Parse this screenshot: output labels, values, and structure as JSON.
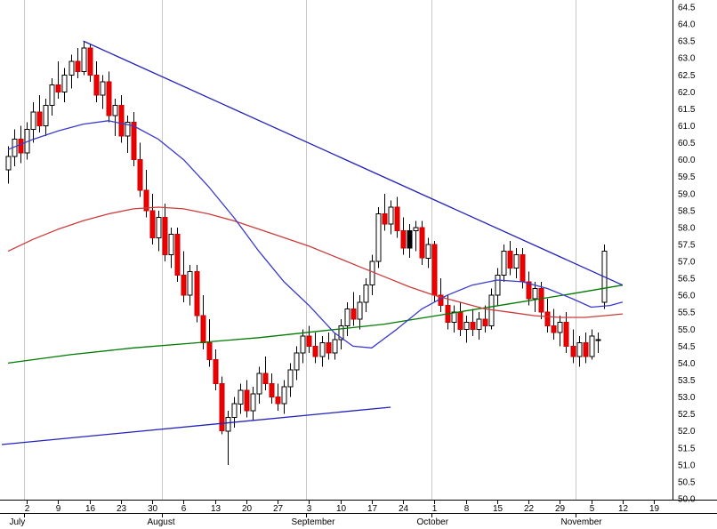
{
  "chart_data": {
    "type": "candlestick",
    "title": "",
    "y_axis": {
      "min": 50.0,
      "max": 64.5,
      "step": 0.5,
      "labels": [
        "64.5",
        "64.0",
        "63.5",
        "63.0",
        "62.5",
        "62.0",
        "61.5",
        "61.0",
        "60.5",
        "60.0",
        "59.5",
        "59.0",
        "58.5",
        "58.0",
        "57.5",
        "57.0",
        "56.5",
        "56.0",
        "55.5",
        "55.0",
        "54.5",
        "54.0",
        "53.5",
        "53.0",
        "52.5",
        "52.0",
        "51.5",
        "51.0",
        "50.5",
        "50.0"
      ]
    },
    "x_axis": {
      "week_ticks": [
        {
          "label": "2",
          "i": 3
        },
        {
          "label": "9",
          "i": 8
        },
        {
          "label": "16",
          "i": 13
        },
        {
          "label": "23",
          "i": 18
        },
        {
          "label": "30",
          "i": 23
        },
        {
          "label": "6",
          "i": 28
        },
        {
          "label": "13",
          "i": 33
        },
        {
          "label": "20",
          "i": 38
        },
        {
          "label": "27",
          "i": 43
        },
        {
          "label": "3",
          "i": 48
        },
        {
          "label": "10",
          "i": 53
        },
        {
          "label": "17",
          "i": 58
        },
        {
          "label": "24",
          "i": 63
        },
        {
          "label": "1",
          "i": 68
        },
        {
          "label": "8",
          "i": 73
        },
        {
          "label": "15",
          "i": 78
        },
        {
          "label": "22",
          "i": 83
        },
        {
          "label": "29",
          "i": 88
        },
        {
          "label": "5",
          "i": 93
        },
        {
          "label": "12",
          "i": 98
        },
        {
          "label": "19",
          "i": 103
        }
      ],
      "months": [
        {
          "label": "July",
          "boundary_i": 2.5
        },
        {
          "label": "August",
          "boundary_i": 24.5
        },
        {
          "label": "September",
          "boundary_i": 47.5
        },
        {
          "label": "October",
          "boundary_i": 67.5
        },
        {
          "label": "November",
          "boundary_i": 90.5
        }
      ]
    },
    "candles": [
      [
        59.7,
        60.4,
        59.3,
        60.1
      ],
      [
        60.1,
        60.9,
        59.8,
        60.6
      ],
      [
        60.6,
        61.0,
        59.9,
        60.2
      ],
      [
        60.2,
        61.1,
        60.0,
        60.9
      ],
      [
        60.9,
        61.7,
        60.5,
        61.4
      ],
      [
        61.4,
        61.9,
        60.8,
        61.0
      ],
      [
        61.0,
        61.8,
        60.7,
        61.6
      ],
      [
        61.6,
        62.4,
        61.3,
        62.2
      ],
      [
        62.2,
        62.9,
        61.8,
        62.0
      ],
      [
        62.0,
        62.7,
        61.7,
        62.5
      ],
      [
        62.5,
        63.1,
        62.1,
        62.9
      ],
      [
        62.9,
        63.3,
        62.4,
        62.6
      ],
      [
        62.6,
        63.5,
        62.5,
        63.3
      ],
      [
        63.3,
        63.4,
        62.3,
        62.5
      ],
      [
        62.5,
        62.9,
        61.7,
        61.9
      ],
      [
        61.9,
        62.5,
        61.5,
        62.3
      ],
      [
        62.3,
        62.6,
        61.1,
        61.3
      ],
      [
        61.3,
        61.8,
        60.7,
        61.6
      ],
      [
        61.6,
        61.9,
        60.5,
        60.7
      ],
      [
        60.7,
        61.3,
        60.2,
        61.1
      ],
      [
        61.1,
        61.4,
        59.8,
        60.0
      ],
      [
        60.0,
        60.5,
        58.9,
        59.1
      ],
      [
        59.1,
        59.7,
        58.3,
        58.5
      ],
      [
        58.5,
        59.0,
        57.5,
        57.7
      ],
      [
        57.7,
        58.5,
        57.3,
        58.3
      ],
      [
        58.3,
        58.7,
        57.0,
        57.2
      ],
      [
        57.2,
        58.0,
        56.8,
        57.8
      ],
      [
        57.8,
        58.0,
        56.4,
        56.6
      ],
      [
        56.6,
        57.3,
        55.8,
        56.0
      ],
      [
        56.0,
        56.9,
        55.7,
        56.7
      ],
      [
        56.7,
        56.9,
        55.2,
        55.4
      ],
      [
        55.4,
        56.0,
        54.4,
        54.6
      ],
      [
        54.6,
        55.3,
        53.9,
        54.1
      ],
      [
        54.1,
        54.4,
        53.2,
        53.4
      ],
      [
        53.4,
        53.6,
        51.9,
        52.0
      ],
      [
        52.0,
        52.6,
        51.0,
        52.4
      ],
      [
        52.4,
        53.0,
        52.1,
        52.8
      ],
      [
        52.8,
        53.4,
        52.5,
        53.2
      ],
      [
        53.2,
        53.5,
        52.4,
        52.6
      ],
      [
        52.6,
        53.3,
        52.3,
        53.1
      ],
      [
        53.1,
        53.9,
        52.8,
        53.7
      ],
      [
        53.7,
        54.2,
        53.2,
        53.4
      ],
      [
        53.4,
        53.7,
        52.8,
        53.0
      ],
      [
        53.0,
        53.4,
        52.6,
        52.8
      ],
      [
        52.8,
        53.5,
        52.5,
        53.3
      ],
      [
        53.3,
        54.0,
        53.0,
        53.8
      ],
      [
        53.8,
        54.5,
        53.5,
        54.3
      ],
      [
        54.3,
        55.0,
        54.0,
        54.8
      ],
      [
        54.8,
        55.1,
        54.3,
        54.5
      ],
      [
        54.5,
        54.9,
        54.0,
        54.2
      ],
      [
        54.2,
        54.8,
        53.9,
        54.6
      ],
      [
        54.6,
        54.9,
        54.1,
        54.3
      ],
      [
        54.3,
        54.9,
        54.1,
        54.7
      ],
      [
        54.7,
        55.3,
        54.4,
        55.1
      ],
      [
        55.1,
        55.8,
        54.8,
        55.6
      ],
      [
        55.6,
        56.1,
        55.1,
        55.3
      ],
      [
        55.3,
        56.0,
        55.0,
        55.8
      ],
      [
        55.8,
        56.5,
        55.5,
        56.3
      ],
      [
        56.3,
        57.2,
        56.0,
        57.0
      ],
      [
        57.0,
        58.6,
        56.8,
        58.4
      ],
      [
        58.4,
        59.0,
        57.9,
        58.1
      ],
      [
        58.1,
        58.8,
        57.8,
        58.6
      ],
      [
        58.6,
        58.9,
        57.7,
        57.9
      ],
      [
        57.9,
        58.3,
        57.2,
        57.4
      ],
      [
        57.4,
        58.1,
        57.1,
        57.9,
        "k"
      ],
      [
        57.9,
        58.2,
        57.3,
        58.0
      ],
      [
        58.0,
        58.2,
        56.9,
        57.1
      ],
      [
        57.1,
        57.7,
        56.8,
        57.5
      ],
      [
        57.5,
        57.6,
        55.8,
        56.0
      ],
      [
        56.0,
        56.5,
        55.5,
        55.7
      ],
      [
        55.7,
        56.0,
        55.0,
        55.2
      ],
      [
        55.2,
        55.7,
        54.9,
        55.5
      ],
      [
        55.5,
        55.8,
        54.8,
        55.0
      ],
      [
        55.0,
        55.4,
        54.6,
        55.2
      ],
      [
        55.2,
        55.6,
        54.8,
        55.0
      ],
      [
        55.0,
        55.5,
        54.7,
        55.3
      ],
      [
        55.3,
        55.7,
        54.9,
        55.1
      ],
      [
        55.1,
        56.2,
        55.0,
        56.0
      ],
      [
        56.0,
        56.8,
        55.7,
        56.6
      ],
      [
        56.6,
        57.5,
        56.4,
        57.3
      ],
      [
        57.3,
        57.6,
        56.6,
        56.8
      ],
      [
        56.8,
        57.4,
        56.5,
        57.2
      ],
      [
        57.2,
        57.4,
        56.2,
        56.4
      ],
      [
        56.4,
        56.7,
        55.7,
        55.9
      ],
      [
        55.9,
        56.4,
        55.5,
        56.2
      ],
      [
        56.2,
        56.4,
        55.3,
        55.5
      ],
      [
        55.5,
        55.9,
        54.9,
        55.1
      ],
      [
        55.1,
        55.6,
        54.7,
        54.9
      ],
      [
        54.9,
        55.4,
        54.5,
        55.2
      ],
      [
        55.2,
        55.5,
        54.3,
        54.5
      ],
      [
        54.5,
        55.0,
        54.0,
        54.2
      ],
      [
        54.2,
        54.8,
        53.9,
        54.6
      ],
      [
        54.6,
        54.9,
        54.0,
        54.2
      ],
      [
        54.2,
        55.0,
        54.1,
        54.8
      ],
      [
        54.7,
        54.9,
        54.3,
        54.7
      ],
      [
        55.8,
        57.5,
        55.6,
        57.3
      ]
    ],
    "moving_averages": [
      {
        "name": "green-ma-line",
        "color": "#007a00",
        "points": [
          [
            0,
            54.0
          ],
          [
            10,
            54.25
          ],
          [
            20,
            54.45
          ],
          [
            30,
            54.6
          ],
          [
            40,
            54.75
          ],
          [
            50,
            54.95
          ],
          [
            60,
            55.15
          ],
          [
            70,
            55.45
          ],
          [
            80,
            55.75
          ],
          [
            90,
            56.05
          ],
          [
            98,
            56.3
          ]
        ]
      },
      {
        "name": "red-ma-line",
        "color": "#cc3b3b",
        "points": [
          [
            0,
            57.3
          ],
          [
            4,
            57.65
          ],
          [
            8,
            57.95
          ],
          [
            12,
            58.2
          ],
          [
            16,
            58.4
          ],
          [
            20,
            58.55
          ],
          [
            24,
            58.6
          ],
          [
            28,
            58.55
          ],
          [
            32,
            58.4
          ],
          [
            36,
            58.2
          ],
          [
            40,
            57.95
          ],
          [
            44,
            57.7
          ],
          [
            48,
            57.45
          ],
          [
            52,
            57.15
          ],
          [
            56,
            56.85
          ],
          [
            60,
            56.55
          ],
          [
            64,
            56.25
          ],
          [
            68,
            56.0
          ],
          [
            72,
            55.8
          ],
          [
            76,
            55.6
          ],
          [
            80,
            55.5
          ],
          [
            84,
            55.4
          ],
          [
            88,
            55.35
          ],
          [
            92,
            55.35
          ],
          [
            95,
            55.4
          ],
          [
            98,
            55.45
          ]
        ]
      },
      {
        "name": "blue-ma-line",
        "color": "#3a3acc",
        "points": [
          [
            0,
            60.3
          ],
          [
            4,
            60.6
          ],
          [
            8,
            60.85
          ],
          [
            12,
            61.05
          ],
          [
            16,
            61.15
          ],
          [
            20,
            61.0
          ],
          [
            24,
            60.6
          ],
          [
            28,
            60.0
          ],
          [
            32,
            59.2
          ],
          [
            36,
            58.3
          ],
          [
            40,
            57.3
          ],
          [
            44,
            56.4
          ],
          [
            48,
            55.7
          ],
          [
            52,
            54.9
          ],
          [
            55,
            54.5
          ],
          [
            58,
            54.45
          ],
          [
            62,
            55.0
          ],
          [
            66,
            55.6
          ],
          [
            70,
            56.0
          ],
          [
            74,
            56.3
          ],
          [
            78,
            56.45
          ],
          [
            82,
            56.4
          ],
          [
            86,
            56.2
          ],
          [
            90,
            55.9
          ],
          [
            93,
            55.65
          ],
          [
            96,
            55.7
          ],
          [
            98,
            55.8
          ]
        ]
      }
    ],
    "trendlines": [
      {
        "name": "descending-trendline",
        "color": "#2222bb",
        "from": [
          12,
          63.5
        ],
        "to": [
          98,
          56.3
        ]
      },
      {
        "name": "ascending-trendline",
        "color": "#2222bb",
        "from": [
          -1,
          51.6
        ],
        "to": [
          61,
          52.7
        ]
      }
    ],
    "colors": {
      "background": "#ffffff",
      "up": "#ffffff",
      "up_border": "#000000",
      "down": "#ee0000",
      "down_border": "#cc0000",
      "black_candle": "#000000",
      "wick": "#000000",
      "grid": "#c9c9c9",
      "axis": "#000000"
    }
  }
}
